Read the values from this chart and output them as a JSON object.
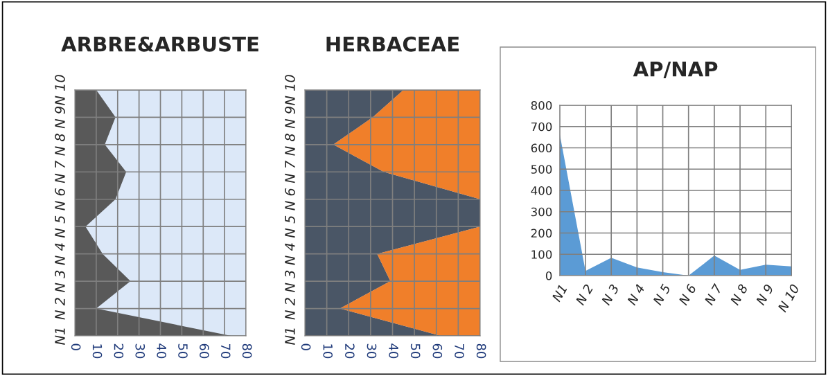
{
  "chart_data": [
    {
      "type": "area",
      "title": "ARBRE&ARBUSTE",
      "orientation": "horizontal",
      "categories": [
        "N 10",
        "N 9",
        "N 8",
        "N 7",
        "N 6",
        "N 5",
        "N 4",
        "N 3",
        "N 2",
        "N1"
      ],
      "series": [
        {
          "color": "#595959",
          "values": [
            10,
            19,
            14,
            24,
            19,
            5,
            13,
            26,
            10,
            73
          ]
        }
      ],
      "xlim": [
        0,
        80
      ],
      "xticks": [
        0,
        10,
        20,
        30,
        40,
        50,
        60,
        70,
        80
      ],
      "grid": true
    },
    {
      "type": "area",
      "title": "HERBACEAE",
      "orientation": "horizontal",
      "stacked": true,
      "categories": [
        "N 10",
        "N 9",
        "N 8",
        "N 7",
        "N 6",
        "N 5",
        "N 4",
        "N 3",
        "N 2",
        "N1"
      ],
      "series": [
        {
          "color": "#4a5666",
          "values": [
            45,
            31,
            13,
            36,
            80,
            80,
            33,
            39,
            16,
            62
          ]
        },
        {
          "color": "#f07f2a",
          "values": [
            35,
            49,
            67,
            44,
            0,
            0,
            47,
            41,
            64,
            18
          ]
        }
      ],
      "xlim": [
        0,
        80
      ],
      "xticks": [
        0,
        10,
        20,
        30,
        40,
        50,
        60,
        70,
        80
      ],
      "grid": true
    },
    {
      "type": "area",
      "title": "AP/NAP",
      "categories": [
        "N1",
        "N 2",
        "N 3",
        "N 4",
        "N 5",
        "N 6",
        "N 7",
        "N 8",
        "N 9",
        "N 10"
      ],
      "series": [
        {
          "color": "#5b9bd5",
          "values": [
            665,
            22,
            84,
            38,
            16,
            0,
            94,
            27,
            51,
            43
          ]
        }
      ],
      "ylim": [
        0,
        800
      ],
      "yticks": [
        0,
        100,
        200,
        300,
        400,
        500,
        600,
        700,
        800
      ],
      "grid": true
    }
  ]
}
